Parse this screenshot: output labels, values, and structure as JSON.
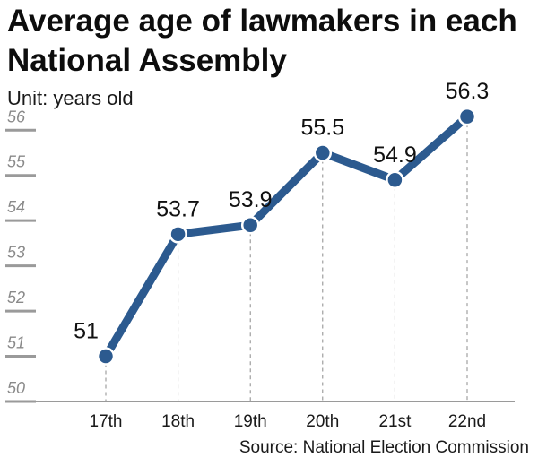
{
  "chart_data": {
    "type": "line",
    "title": "Average age of lawmakers in each National Assembly",
    "subtitle": "Unit: years old",
    "source": "Source: National Election Commission",
    "categories": [
      "17th",
      "18th",
      "19th",
      "20th",
      "21st",
      "22nd"
    ],
    "values": [
      51,
      53.7,
      53.9,
      55.5,
      54.9,
      56.3
    ],
    "data_labels": [
      "51",
      "53.7",
      "53.9",
      "55.5",
      "54.9",
      "56.3"
    ],
    "y_ticks": [
      "56",
      "55",
      "54",
      "53",
      "52",
      "51",
      "50"
    ],
    "ylim": [
      50,
      56.6
    ],
    "grid": false,
    "colors": {
      "line": "#2c5a8f",
      "marker_fill": "#2c5a8f",
      "marker_stroke": "#ffffff",
      "tick_mark": "#9a9a9a",
      "tick_label": "#8a8a8a",
      "guide": "#8c8c8c"
    }
  }
}
